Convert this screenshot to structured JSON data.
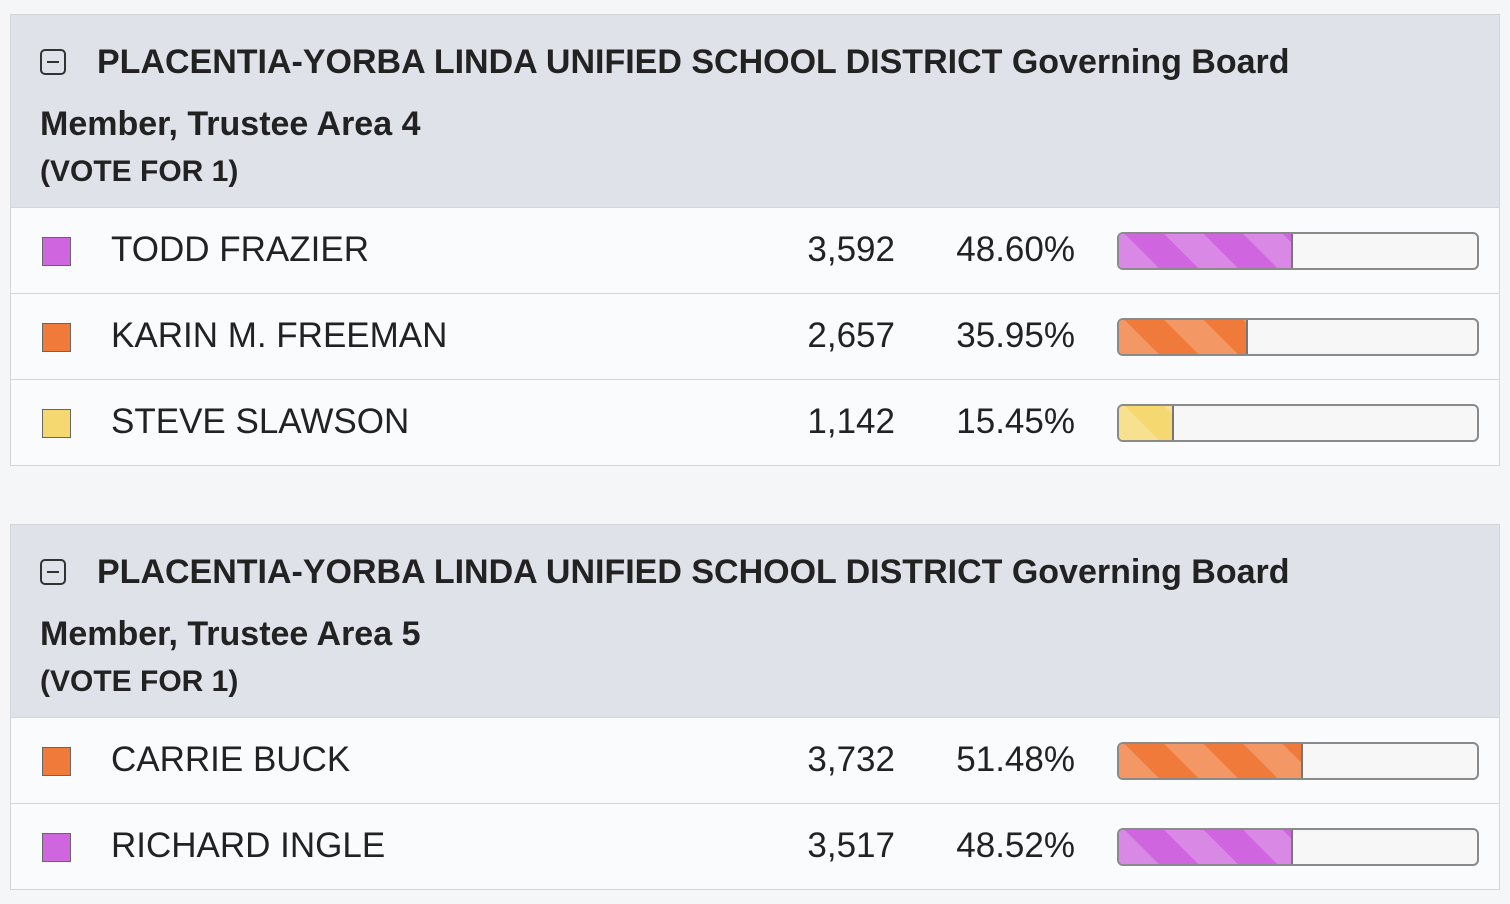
{
  "contests": [
    {
      "title": "PLACENTIA-YORBA LINDA UNIFIED SCHOOL DISTRICT Governing Board",
      "subtitle": "Member, Trustee Area 4",
      "vote_for": "(VOTE FOR 1)",
      "candidates": [
        {
          "name": "TODD FRAZIER",
          "color": "#cf66df",
          "votes": "3,592",
          "percent": {
            "value": 48.6,
            "label": "48.60%"
          }
        },
        {
          "name": "KARIN M. FREEMAN",
          "color": "#f07a3a",
          "votes": "2,657",
          "percent": {
            "value": 35.95,
            "label": "35.95%"
          }
        },
        {
          "name": "STEVE SLAWSON",
          "color": "#f5d870",
          "votes": "1,142",
          "percent": {
            "value": 15.45,
            "label": "15.45%"
          }
        }
      ]
    },
    {
      "title": "PLACENTIA-YORBA LINDA UNIFIED SCHOOL DISTRICT Governing Board",
      "subtitle": "Member, Trustee Area 5",
      "vote_for": "(VOTE FOR 1)",
      "candidates": [
        {
          "name": "CARRIE BUCK",
          "color": "#f07a3a",
          "votes": "3,732",
          "percent": {
            "value": 51.48,
            "label": "51.48%"
          }
        },
        {
          "name": "RICHARD INGLE",
          "color": "#cf66df",
          "votes": "3,517",
          "percent": {
            "value": 48.52,
            "label": "48.52%"
          }
        }
      ]
    }
  ]
}
